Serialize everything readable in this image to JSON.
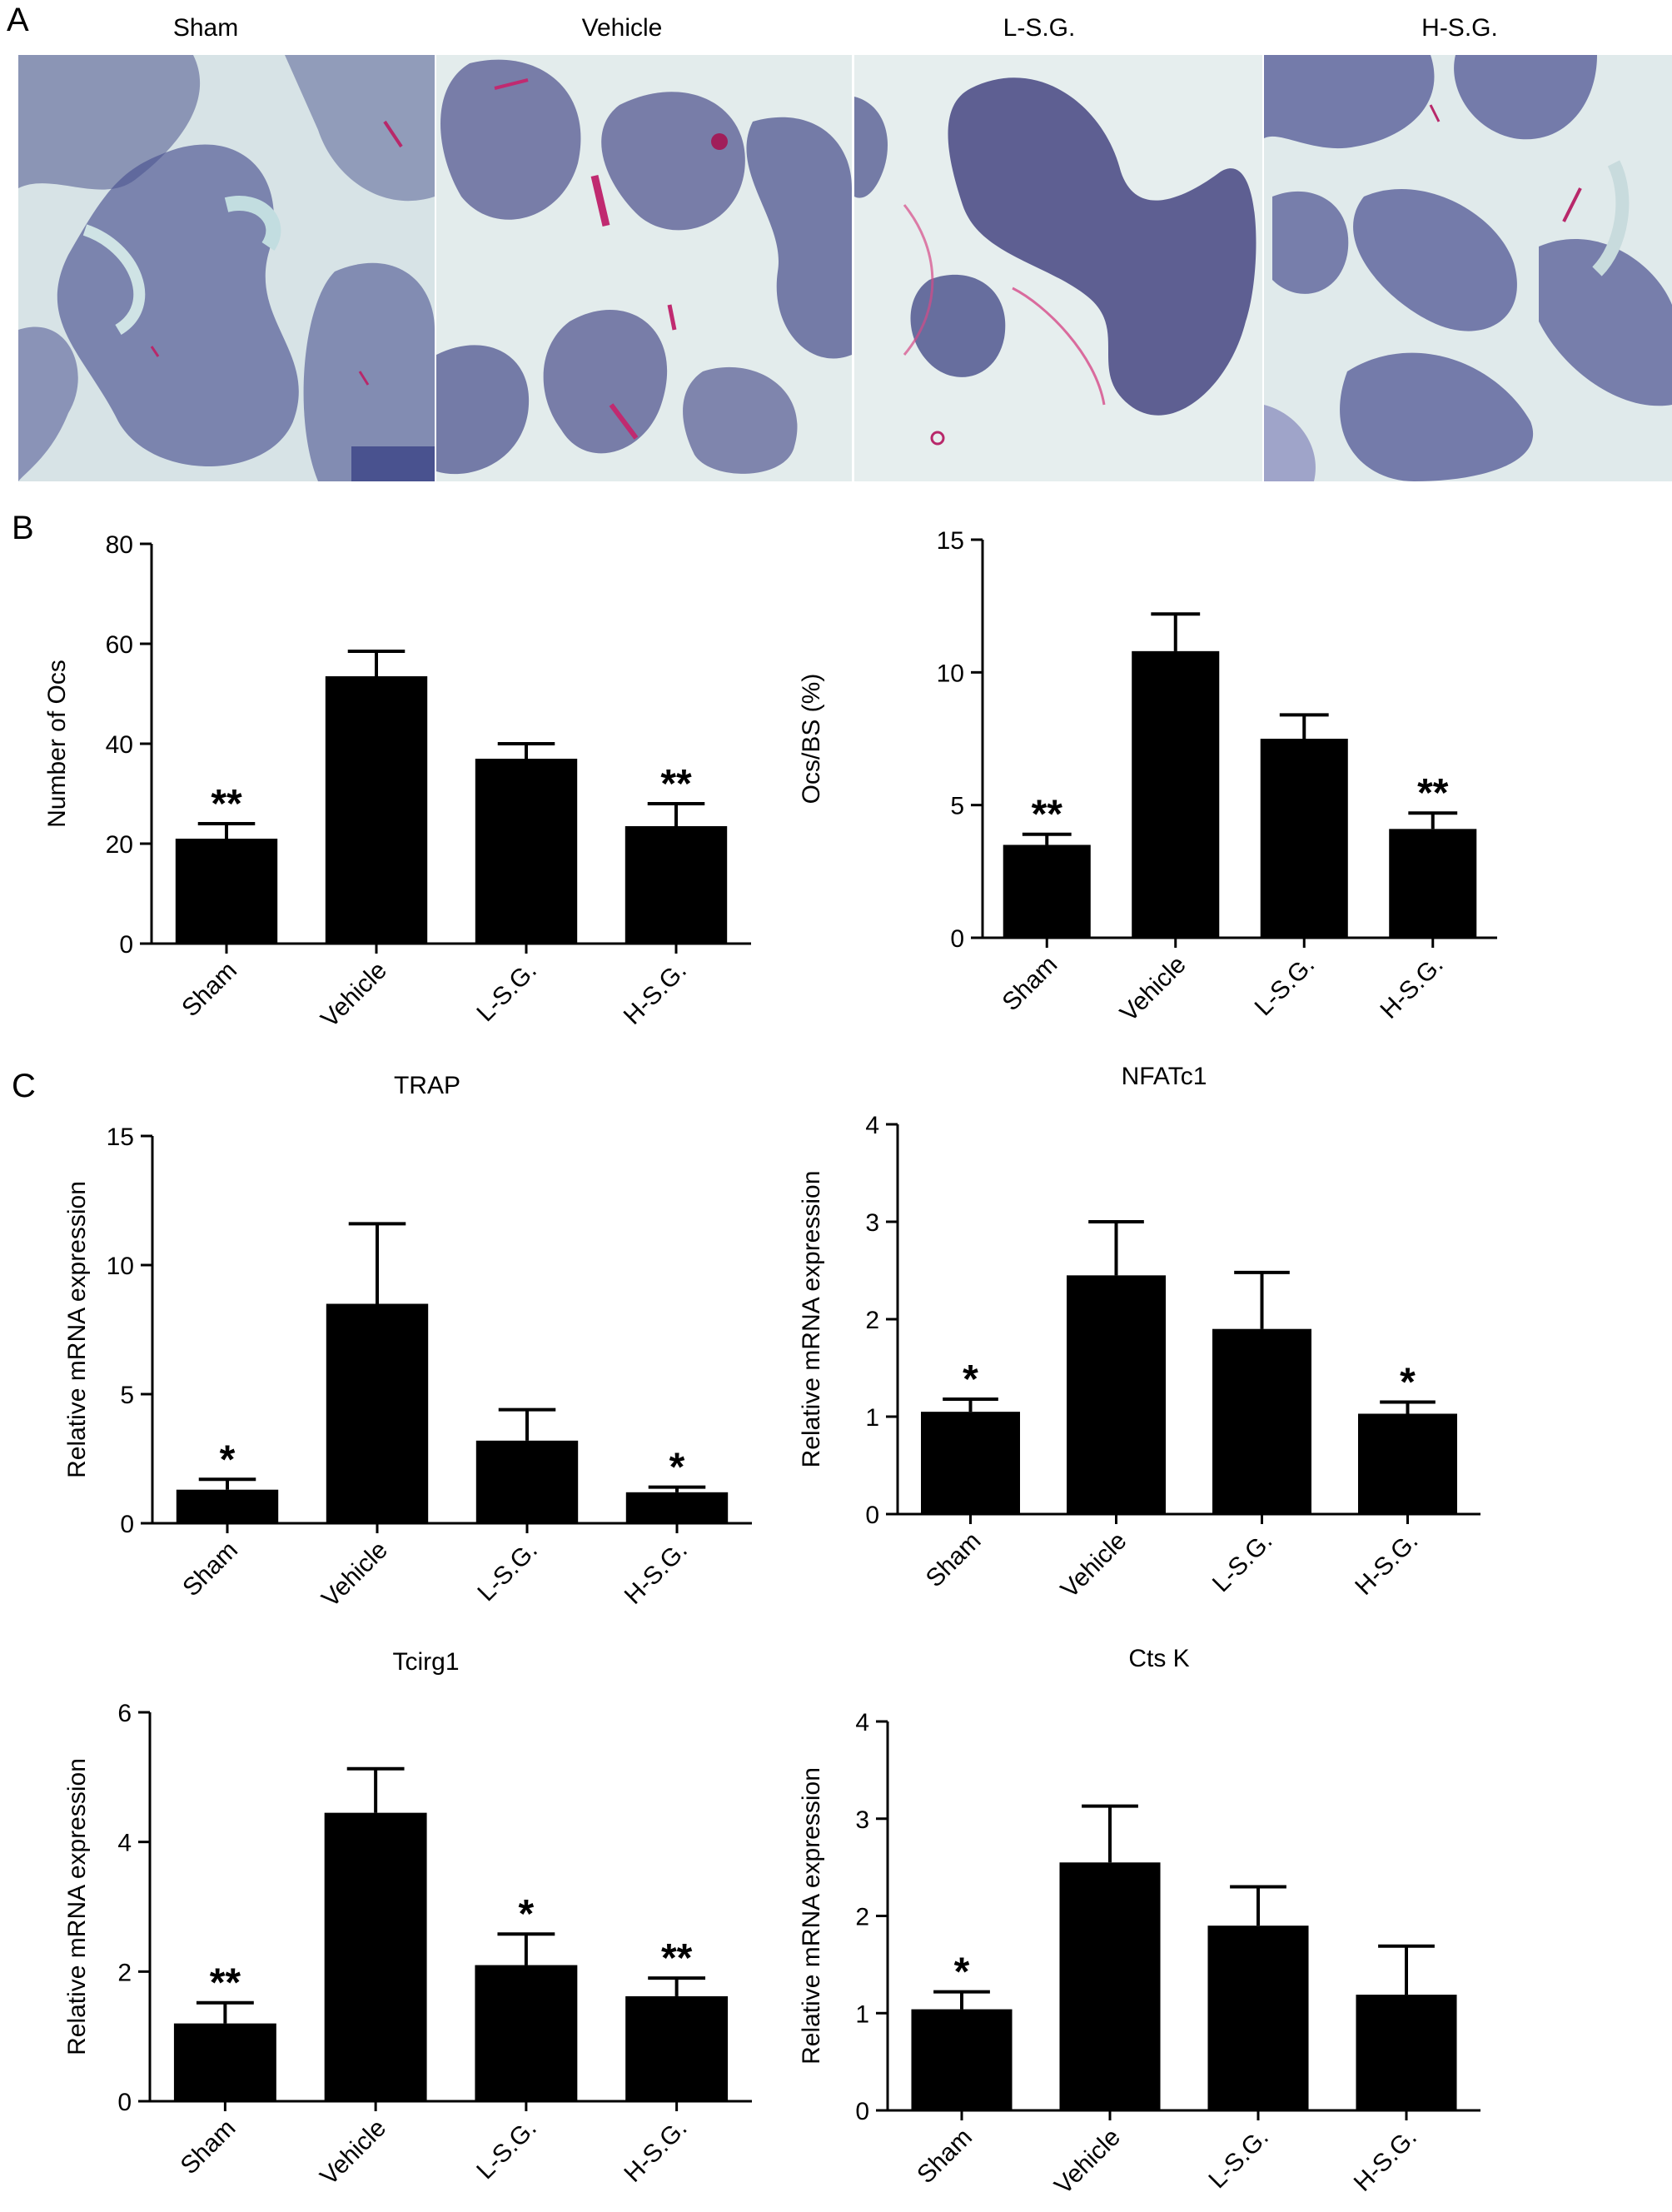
{
  "panels": {
    "A": "A",
    "B": "B",
    "C": "C"
  },
  "micrographs": [
    {
      "label": "Sham"
    },
    {
      "label": "Vehicle"
    },
    {
      "label": "L-S.G."
    },
    {
      "label": "H-S.G."
    }
  ],
  "colors": {
    "bar": "#000000",
    "tissue_bg": "#dfe8ea",
    "marrow": "#4a4f86",
    "trap_stain": "#b8286a"
  },
  "chart_data": [
    {
      "type": "bar",
      "title": "",
      "xlabel": "",
      "ylabel": "Number of Ocs",
      "categories": [
        "Sham",
        "Vehicle",
        "L-S.G.",
        "H-S.G."
      ],
      "values": [
        21,
        53.5,
        37,
        23.5
      ],
      "errors": [
        3,
        5,
        3,
        4.5
      ],
      "annotations": [
        "**",
        "",
        "",
        "**"
      ],
      "ylim": [
        0,
        80
      ],
      "yticks": [
        0,
        20,
        40,
        60,
        80
      ]
    },
    {
      "type": "bar",
      "title": "",
      "xlabel": "",
      "ylabel": "Ocs/BS (%)",
      "categories": [
        "Sham",
        "Vehicle",
        "L-S.G.",
        "H-S.G."
      ],
      "values": [
        3.5,
        10.8,
        7.5,
        4.1
      ],
      "errors": [
        0.4,
        1.4,
        0.9,
        0.6
      ],
      "annotations": [
        "**",
        "",
        "",
        "**"
      ],
      "ylim": [
        0,
        15
      ],
      "yticks": [
        0,
        5,
        10,
        15
      ]
    },
    {
      "type": "bar",
      "title": "TRAP",
      "xlabel": "",
      "ylabel": "Relative mRNA expression",
      "categories": [
        "Sham",
        "Vehicle",
        "L-S.G.",
        "H-S.G."
      ],
      "values": [
        1.3,
        8.5,
        3.2,
        1.2
      ],
      "errors": [
        0.4,
        3.1,
        1.2,
        0.2
      ],
      "annotations": [
        "*",
        "",
        "",
        "*"
      ],
      "ylim": [
        0,
        15
      ],
      "yticks": [
        0,
        5,
        10,
        15
      ]
    },
    {
      "type": "bar",
      "title": "NFATc1",
      "xlabel": "",
      "ylabel": "Relative mRNA expression",
      "categories": [
        "Sham",
        "Vehicle",
        "L-S.G.",
        "H-S.G."
      ],
      "values": [
        1.05,
        2.45,
        1.9,
        1.03
      ],
      "errors": [
        0.13,
        0.55,
        0.58,
        0.12
      ],
      "annotations": [
        "*",
        "",
        "",
        "*"
      ],
      "ylim": [
        0,
        4
      ],
      "yticks": [
        0,
        1,
        2,
        3,
        4
      ]
    },
    {
      "type": "bar",
      "title": "Tcirg1",
      "xlabel": "",
      "ylabel": "Relative mRNA expression",
      "categories": [
        "Sham",
        "Vehicle",
        "L-S.G.",
        "H-S.G."
      ],
      "values": [
        1.2,
        4.45,
        2.1,
        1.62
      ],
      "errors": [
        0.32,
        0.68,
        0.48,
        0.28
      ],
      "annotations": [
        "**",
        "",
        "*",
        "**"
      ],
      "ylim": [
        0,
        6
      ],
      "yticks": [
        0,
        2,
        4,
        6
      ]
    },
    {
      "type": "bar",
      "title": "Cts K",
      "xlabel": "",
      "ylabel": "Relative mRNA expression",
      "categories": [
        "Sham",
        "Vehicle",
        "L-S.G.",
        "H-S.G."
      ],
      "values": [
        1.04,
        2.55,
        1.9,
        1.19
      ],
      "errors": [
        0.18,
        0.58,
        0.4,
        0.5
      ],
      "annotations": [
        "*",
        "",
        "",
        ""
      ],
      "ylim": [
        0,
        4
      ],
      "yticks": [
        0,
        1,
        2,
        3,
        4
      ]
    }
  ]
}
